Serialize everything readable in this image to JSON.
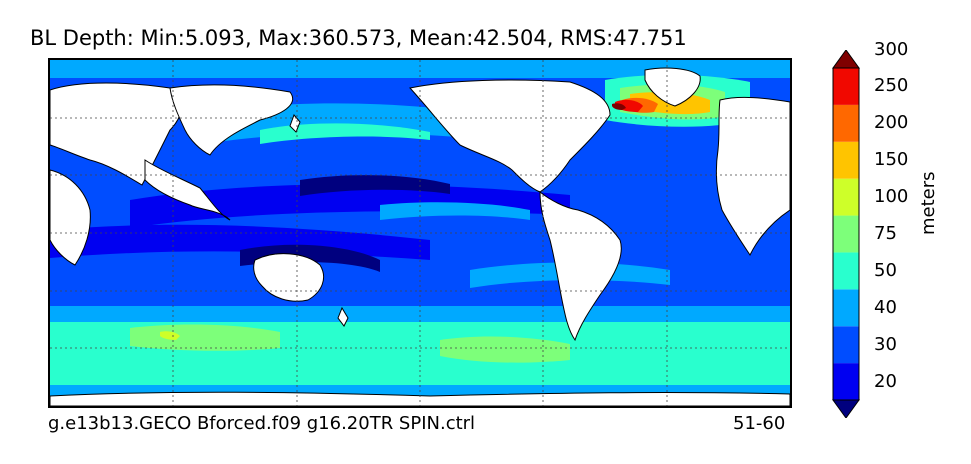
{
  "title": "BL Depth: Min:5.093, Max:360.573, Mean:42.504, RMS:47.751",
  "footer": {
    "case_name": "g.e13b13.GECO Bforced.f09 g16.20TR SPIN.ctrl",
    "years": "51-60"
  },
  "colorbar": {
    "units": "meters",
    "levels": [
      20,
      30,
      40,
      50,
      75,
      100,
      150,
      200,
      250,
      300
    ],
    "colors": [
      "#00007f",
      "#0000f1",
      "#004dff",
      "#00a9ff",
      "#29ffce",
      "#7dff7a",
      "#ceff29",
      "#ffc400",
      "#ff6800",
      "#f10800",
      "#7f0000"
    ]
  },
  "chart_data": {
    "type": "heatmap",
    "title": "BL Depth: Min:5.093, Max:360.573, Mean:42.504, RMS:47.751",
    "zlabel": "meters",
    "stats": {
      "min": 5.093,
      "max": 360.573,
      "mean": 42.504,
      "rms": 47.751
    },
    "contour_levels": [
      20,
      30,
      40,
      50,
      75,
      100,
      150,
      200,
      250,
      300
    ],
    "extend": "both",
    "grid": true
  }
}
